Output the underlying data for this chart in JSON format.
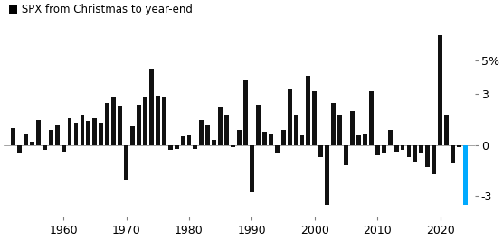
{
  "title": "SPX from Christmas to year-end",
  "years": [
    1952,
    1953,
    1954,
    1955,
    1956,
    1957,
    1958,
    1959,
    1960,
    1961,
    1962,
    1963,
    1964,
    1965,
    1966,
    1967,
    1968,
    1969,
    1970,
    1971,
    1972,
    1973,
    1974,
    1975,
    1976,
    1977,
    1978,
    1979,
    1980,
    1981,
    1982,
    1983,
    1984,
    1985,
    1986,
    1987,
    1988,
    1989,
    1990,
    1991,
    1992,
    1993,
    1994,
    1995,
    1996,
    1997,
    1998,
    1999,
    2000,
    2001,
    2002,
    2003,
    2004,
    2005,
    2006,
    2007,
    2008,
    2009,
    2010,
    2011,
    2012,
    2013,
    2014,
    2015,
    2016,
    2017,
    2018,
    2019,
    2020,
    2021,
    2022,
    2023,
    2024
  ],
  "values": [
    1.0,
    -0.5,
    0.7,
    0.2,
    1.5,
    -0.3,
    0.9,
    1.2,
    -0.4,
    1.6,
    1.3,
    1.8,
    1.4,
    1.6,
    1.3,
    2.5,
    2.8,
    2.3,
    -2.1,
    1.1,
    2.4,
    2.8,
    4.5,
    2.9,
    2.8,
    -0.3,
    -0.2,
    0.5,
    0.6,
    -0.2,
    1.5,
    1.2,
    0.3,
    2.2,
    1.8,
    -0.1,
    0.9,
    3.8,
    -2.8,
    2.4,
    0.8,
    0.7,
    -0.5,
    0.9,
    3.3,
    1.8,
    0.6,
    4.1,
    3.2,
    -0.7,
    -3.5,
    2.5,
    1.8,
    -1.2,
    2.0,
    0.6,
    0.7,
    3.2,
    -0.6,
    -0.5,
    0.9,
    -0.4,
    -0.3,
    -0.7,
    -1.0,
    -0.5,
    -1.3,
    -1.7,
    6.5,
    1.8,
    -1.1,
    -0.1,
    -3.5
  ],
  "bar_color": "#111111",
  "highlight_color": "#00AAFF",
  "highlight_year": 2024,
  "yticks": [
    -3,
    0,
    3,
    5
  ],
  "ytick_labels": [
    "-3",
    "0",
    "3",
    "5%"
  ],
  "xtick_years": [
    1960,
    1970,
    1980,
    1990,
    2000,
    2010,
    2020
  ],
  "ylim": [
    -4.2,
    7.2
  ],
  "background_color": "#ffffff"
}
